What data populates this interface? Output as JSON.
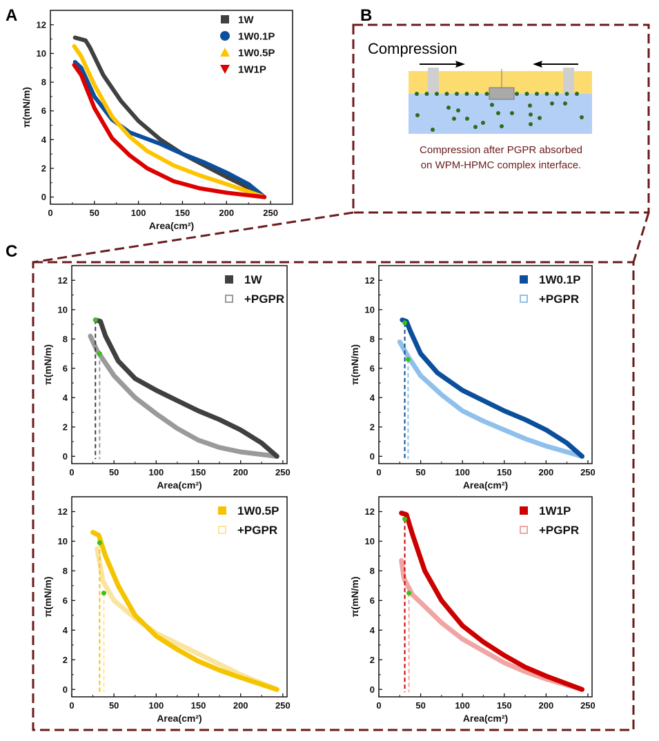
{
  "panels": {
    "a": "A",
    "b": "B",
    "c": "C"
  },
  "schematic": {
    "title": "Compression",
    "caption_line1": "Compression after PGPR absorbed",
    "caption_line2": "on WPM-HPMC complex interface.",
    "colors": {
      "oil": "#fcdc6e",
      "water": "#b3cff5",
      "particle": "#2e6b1e",
      "frame": "#6b1a1a",
      "caption": "#6b1a1a"
    }
  },
  "chart_data": [
    {
      "id": "A",
      "type": "line",
      "title": "",
      "xlabel": "Area(cm²)",
      "ylabel": "π(mN/m)",
      "xlim": [
        0,
        275
      ],
      "ylim": [
        -0.5,
        13
      ],
      "xticks": [
        0,
        50,
        100,
        150,
        200,
        250
      ],
      "yticks": [
        0,
        2,
        4,
        6,
        8,
        10,
        12
      ],
      "legend_position": "top-right",
      "series": [
        {
          "name": "1W",
          "color": "#404040",
          "marker": "square",
          "points": [
            [
              28,
              11.1
            ],
            [
              40,
              10.9
            ],
            [
              45,
              10.4
            ],
            [
              60,
              8.5
            ],
            [
              80,
              6.7
            ],
            [
              100,
              5.3
            ],
            [
              125,
              4.0
            ],
            [
              150,
              3.0
            ],
            [
              175,
              2.2
            ],
            [
              200,
              1.4
            ],
            [
              220,
              0.8
            ],
            [
              243,
              0
            ]
          ]
        },
        {
          "name": "1W0.1P",
          "color": "#0b4f9c",
          "marker": "circle",
          "points": [
            [
              28,
              9.4
            ],
            [
              35,
              9.0
            ],
            [
              50,
              7.0
            ],
            [
              70,
              5.4
            ],
            [
              90,
              4.5
            ],
            [
              125,
              3.7
            ],
            [
              150,
              3.0
            ],
            [
              175,
              2.4
            ],
            [
              200,
              1.7
            ],
            [
              225,
              0.9
            ],
            [
              243,
              0
            ]
          ]
        },
        {
          "name": "1W0.5P",
          "color": "#ffc400",
          "marker": "triangle",
          "points": [
            [
              27,
              10.5
            ],
            [
              35,
              9.8
            ],
            [
              50,
              7.8
            ],
            [
              70,
              5.6
            ],
            [
              90,
              4.2
            ],
            [
              110,
              3.2
            ],
            [
              140,
              2.2
            ],
            [
              170,
              1.5
            ],
            [
              200,
              0.9
            ],
            [
              243,
              0
            ]
          ]
        },
        {
          "name": "1W1P",
          "color": "#dd0000",
          "marker": "triangle-down",
          "points": [
            [
              27,
              9.2
            ],
            [
              35,
              8.5
            ],
            [
              50,
              6.2
            ],
            [
              70,
              4.1
            ],
            [
              90,
              2.9
            ],
            [
              110,
              2.0
            ],
            [
              140,
              1.1
            ],
            [
              170,
              0.6
            ],
            [
              200,
              0.3
            ],
            [
              243,
              0
            ]
          ]
        }
      ]
    },
    {
      "id": "C1",
      "type": "line",
      "xlabel": "Area(cm²)",
      "ylabel": "π(mN/m)",
      "xlim": [
        0,
        255
      ],
      "ylim": [
        -0.5,
        13
      ],
      "xticks": [
        0,
        50,
        100,
        150,
        200,
        250
      ],
      "yticks": [
        0,
        2,
        4,
        6,
        8,
        10,
        12
      ],
      "legend_position": "top-right",
      "series": [
        {
          "name": "1W",
          "color": "#404040",
          "marker": "square",
          "points": [
            [
              28,
              9.3
            ],
            [
              34,
              9.2
            ],
            [
              40,
              8.2
            ],
            [
              55,
              6.5
            ],
            [
              75,
              5.3
            ],
            [
              100,
              4.5
            ],
            [
              125,
              3.8
            ],
            [
              150,
              3.1
            ],
            [
              175,
              2.5
            ],
            [
              200,
              1.8
            ],
            [
              225,
              0.9
            ],
            [
              243,
              0
            ]
          ]
        },
        {
          "name": "+PGPR",
          "color": "#9a9a9a",
          "marker": "square-open",
          "points": [
            [
              22,
              8.2
            ],
            [
              30,
              7.2
            ],
            [
              50,
              5.5
            ],
            [
              75,
              4.0
            ],
            [
              100,
              2.9
            ],
            [
              125,
              1.9
            ],
            [
              150,
              1.1
            ],
            [
              175,
              0.6
            ],
            [
              200,
              0.3
            ],
            [
              243,
              0
            ]
          ]
        }
      ],
      "highlight_points": [
        [
          28,
          9.3
        ],
        [
          33,
          7.0
        ]
      ]
    },
    {
      "id": "C2",
      "type": "line",
      "xlabel": "Area(cm²)",
      "ylabel": "π(mN/m)",
      "xlim": [
        0,
        255
      ],
      "ylim": [
        -0.5,
        13
      ],
      "xticks": [
        0,
        50,
        100,
        150,
        200,
        250
      ],
      "yticks": [
        0,
        2,
        4,
        6,
        8,
        10,
        12
      ],
      "legend_position": "top-right",
      "series": [
        {
          "name": "1W0.1P",
          "color": "#0b4f9c",
          "marker": "square",
          "points": [
            [
              28,
              9.3
            ],
            [
              33,
              9.2
            ],
            [
              38,
              8.5
            ],
            [
              50,
              7.0
            ],
            [
              70,
              5.7
            ],
            [
              100,
              4.5
            ],
            [
              125,
              3.8
            ],
            [
              150,
              3.1
            ],
            [
              175,
              2.5
            ],
            [
              200,
              1.8
            ],
            [
              225,
              0.9
            ],
            [
              243,
              0
            ]
          ]
        },
        {
          "name": "+PGPR",
          "color": "#8fc0ec",
          "marker": "square-open",
          "points": [
            [
              25,
              7.8
            ],
            [
              35,
              6.8
            ],
            [
              50,
              5.5
            ],
            [
              75,
              4.2
            ],
            [
              100,
              3.1
            ],
            [
              125,
              2.4
            ],
            [
              150,
              1.8
            ],
            [
              175,
              1.2
            ],
            [
              200,
              0.7
            ],
            [
              243,
              0
            ]
          ]
        }
      ],
      "highlight_points": [
        [
          31,
          9.1
        ],
        [
          35,
          6.6
        ]
      ]
    },
    {
      "id": "C3",
      "type": "line",
      "xlabel": "Area(cm²)",
      "ylabel": "π(mN/m)",
      "xlim": [
        0,
        255
      ],
      "ylim": [
        -0.5,
        13
      ],
      "xticks": [
        0,
        50,
        100,
        150,
        200,
        250
      ],
      "yticks": [
        0,
        2,
        4,
        6,
        8,
        10,
        12
      ],
      "legend_position": "top-right",
      "series": [
        {
          "name": "1W0.5P",
          "color": "#f5c400",
          "marker": "square",
          "points": [
            [
              25,
              10.6
            ],
            [
              32,
              10.4
            ],
            [
              40,
              9.0
            ],
            [
              55,
              7.0
            ],
            [
              75,
              5.0
            ],
            [
              100,
              3.6
            ],
            [
              125,
              2.7
            ],
            [
              150,
              1.9
            ],
            [
              175,
              1.3
            ],
            [
              200,
              0.8
            ],
            [
              243,
              0
            ]
          ]
        },
        {
          "name": "+PGPR",
          "color": "#fbe4a0",
          "marker": "square-open",
          "points": [
            [
              30,
              9.5
            ],
            [
              37,
              7.3
            ],
            [
              50,
              6.0
            ],
            [
              75,
              4.8
            ],
            [
              100,
              3.8
            ],
            [
              125,
              3.1
            ],
            [
              150,
              2.4
            ],
            [
              175,
              1.7
            ],
            [
              200,
              1.0
            ],
            [
              243,
              0
            ]
          ]
        }
      ],
      "highlight_points": [
        [
          33,
          9.9
        ],
        [
          38,
          6.5
        ]
      ]
    },
    {
      "id": "C4",
      "type": "line",
      "xlabel": "Area(cm²)",
      "ylabel": "π(mN/m)",
      "xlim": [
        0,
        255
      ],
      "ylim": [
        -0.5,
        13
      ],
      "xticks": [
        0,
        50,
        100,
        150,
        200,
        250
      ],
      "yticks": [
        0,
        2,
        4,
        6,
        8,
        10,
        12
      ],
      "legend_position": "top-right",
      "series": [
        {
          "name": "1W1P",
          "color": "#cc0000",
          "marker": "square",
          "points": [
            [
              27,
              11.9
            ],
            [
              33,
              11.8
            ],
            [
              40,
              10.5
            ],
            [
              55,
              8.0
            ],
            [
              75,
              6.0
            ],
            [
              100,
              4.3
            ],
            [
              125,
              3.2
            ],
            [
              150,
              2.3
            ],
            [
              175,
              1.5
            ],
            [
              200,
              0.9
            ],
            [
              243,
              0
            ]
          ]
        },
        {
          "name": "+PGPR",
          "color": "#f2a4a4",
          "marker": "square-open",
          "points": [
            [
              27,
              8.7
            ],
            [
              30,
              7.5
            ],
            [
              40,
              6.4
            ],
            [
              55,
              5.6
            ],
            [
              75,
              4.5
            ],
            [
              100,
              3.4
            ],
            [
              125,
              2.6
            ],
            [
              150,
              1.8
            ],
            [
              175,
              1.2
            ],
            [
              200,
              0.7
            ],
            [
              243,
              0
            ]
          ]
        }
      ],
      "highlight_points": [
        [
          31,
          11.5
        ],
        [
          36,
          6.5
        ]
      ]
    }
  ]
}
